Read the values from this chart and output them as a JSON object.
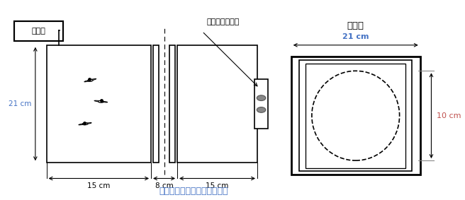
{
  "title": "図１．ヌカカの飛翔実験装置",
  "title_color": "#4472C4",
  "bg_color": "#ffffff",
  "fig_width": 6.56,
  "fig_height": 2.83,
  "label_temperature": "温度計",
  "label_blacklight": "ブラックライト",
  "label_cross_section": "断面図",
  "dim_21cm_left": "21 cm",
  "dim_15cm_left": "15 cm",
  "dim_8cm": "8 cm",
  "dim_15cm_right": "15 cm",
  "dim_21cm_cross": "21 cm",
  "dim_10cm": "10 cm",
  "color_blue": "#4472C4",
  "color_orange": "#C0504D"
}
